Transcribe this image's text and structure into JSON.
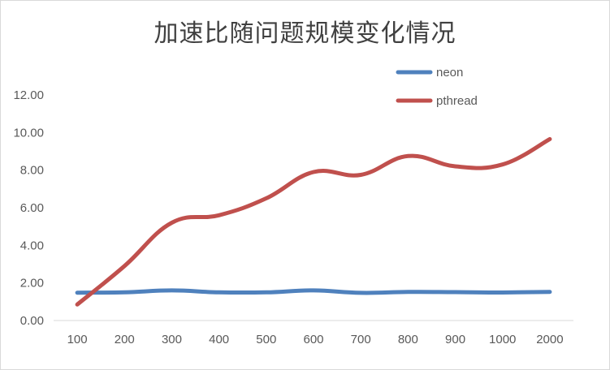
{
  "chart_data": {
    "type": "line",
    "title": "加速比随问题规模变化情况",
    "xlabel": "",
    "ylabel": "",
    "categories": [
      "100",
      "200",
      "300",
      "400",
      "500",
      "600",
      "700",
      "800",
      "900",
      "1000",
      "2000"
    ],
    "ylim": [
      0,
      12
    ],
    "yticks": [
      "0.00",
      "2.00",
      "4.00",
      "6.00",
      "8.00",
      "10.00",
      "12.00"
    ],
    "grid": false,
    "legend_position": "top-right",
    "smooth": true,
    "series": [
      {
        "name": "neon",
        "color": "#4f81bd",
        "values": [
          1.48,
          1.5,
          1.6,
          1.5,
          1.5,
          1.6,
          1.47,
          1.52,
          1.51,
          1.49,
          1.52
        ]
      },
      {
        "name": "pthread",
        "color": "#c0504d",
        "values": [
          0.85,
          2.9,
          5.2,
          5.6,
          6.5,
          7.9,
          7.75,
          8.75,
          8.2,
          8.3,
          9.65
        ]
      }
    ]
  }
}
